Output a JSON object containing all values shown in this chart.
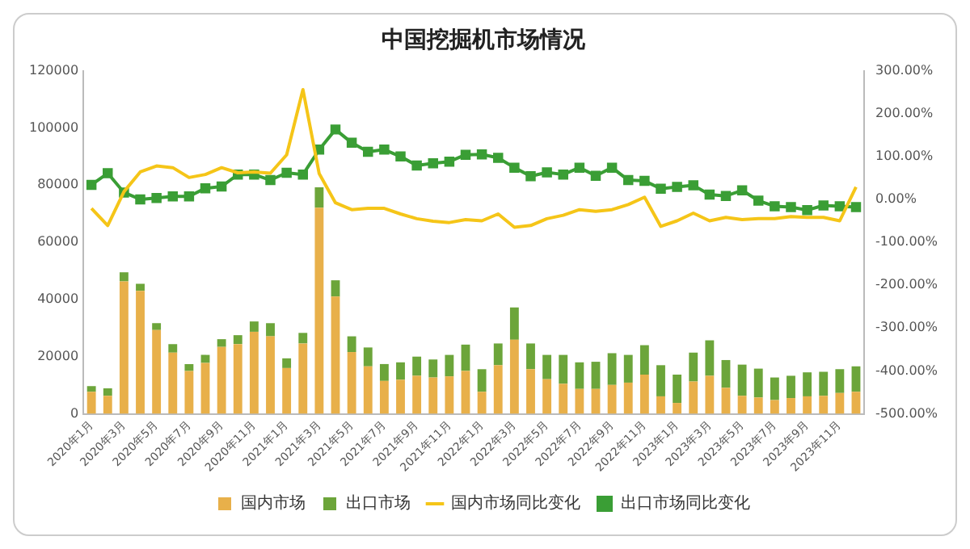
{
  "chart_data": {
    "type": "bar",
    "title": "中国挖掘机市场情况",
    "stacked": true,
    "grid": false,
    "legend": "bottom",
    "categories": [
      "2020年1月",
      null,
      "2020年3月",
      null,
      "2020年5月",
      null,
      "2020年7月",
      null,
      "2020年9月",
      null,
      "2020年11月",
      null,
      "2021年1月",
      null,
      "2021年3月",
      null,
      "2021年5月",
      null,
      "2021年7月",
      null,
      "2021年9月",
      null,
      "2021年11月",
      null,
      "2022年1月",
      null,
      "2022年3月",
      null,
      "2022年5月",
      null,
      "2022年7月",
      null,
      "2022年9月",
      null,
      "2022年11月",
      null,
      "2023年1月",
      null,
      "2023年3月",
      null,
      "2023年5月",
      null,
      "2023年7月",
      null,
      "2023年9月",
      null,
      "2023年11月",
      null
    ],
    "ylim": [
      0,
      120000
    ],
    "yticks": [
      0,
      20000,
      40000,
      60000,
      80000,
      100000,
      120000
    ],
    "y2lim": [
      -500,
      300
    ],
    "y2ticks": [
      {
        "value": -500,
        "label": "-500.00%"
      },
      {
        "value": -400,
        "label": "-400.00%"
      },
      {
        "value": -300,
        "label": "-300.00%"
      },
      {
        "value": -200,
        "label": "-200.00%"
      },
      {
        "value": -100,
        "label": "-100.00%"
      },
      {
        "value": 0,
        "label": "0.00%"
      },
      {
        "value": 100,
        "label": "100.00%"
      },
      {
        "value": 200,
        "label": "200.00%"
      },
      {
        "value": 300,
        "label": "300.00%"
      }
    ],
    "series": [
      {
        "name": "国内市场",
        "color": "#e8b04a",
        "values": [
          7700,
          6300,
          46300,
          43000,
          29300,
          21400,
          15000,
          17800,
          23400,
          24400,
          28700,
          27100,
          16000,
          24600,
          72100,
          41000,
          21600,
          16600,
          11500,
          11900,
          13300,
          12700,
          13100,
          15000,
          7700,
          17000,
          25900,
          15600,
          12100,
          10500,
          8700,
          8700,
          10100,
          10900,
          13700,
          6100,
          3800,
          11300,
          13300,
          9100,
          6300,
          5700,
          4800,
          5500,
          6100,
          6300,
          7300,
          7700
        ]
      },
      {
        "name": "出口市场",
        "color": "#6ca53a",
        "values": [
          2000,
          2600,
          3200,
          2500,
          2400,
          3000,
          2400,
          2800,
          2700,
          3100,
          3600,
          4600,
          3400,
          3700,
          7100,
          5700,
          5500,
          6600,
          5900,
          6100,
          6700,
          6300,
          7500,
          9200,
          7900,
          7600,
          11300,
          9000,
          8500,
          10100,
          9300,
          9500,
          11100,
          9700,
          10300,
          10900,
          9900,
          10100,
          12400,
          9700,
          10900,
          10100,
          7900,
          7800,
          8400,
          8400,
          8300,
          8900
        ]
      },
      {
        "name": "国内市场同比变化",
        "type": "line",
        "axis": "y2",
        "marker": "none",
        "color": "#f5c518",
        "values": [
          -21,
          -61,
          18,
          64,
          78,
          74,
          51,
          58,
          74,
          62,
          64,
          61,
          104,
          256,
          60,
          -8,
          -24,
          -21,
          -21,
          -34,
          -45,
          -51,
          -54,
          -47,
          -50,
          -34,
          -65,
          -61,
          -45,
          -37,
          -24,
          -28,
          -24,
          -12,
          5,
          -63,
          -50,
          -32,
          -50,
          -42,
          -47,
          -45,
          -45,
          -40,
          -42,
          -42,
          -50,
          29
        ]
      },
      {
        "name": "出口市场同比变化",
        "type": "line",
        "axis": "y2",
        "marker": "square",
        "color": "#3a9e35",
        "values": [
          34,
          61,
          16,
          0,
          3,
          7,
          7,
          26,
          30,
          58,
          58,
          45,
          62,
          58,
          116,
          163,
          132,
          111,
          116,
          100,
          79,
          84,
          88,
          104,
          105,
          97,
          74,
          54,
          63,
          58,
          74,
          55,
          74,
          45,
          43,
          25,
          29,
          33,
          11,
          8,
          21,
          -3,
          -16,
          -18,
          -25,
          -14,
          -16,
          -18
        ]
      }
    ]
  }
}
